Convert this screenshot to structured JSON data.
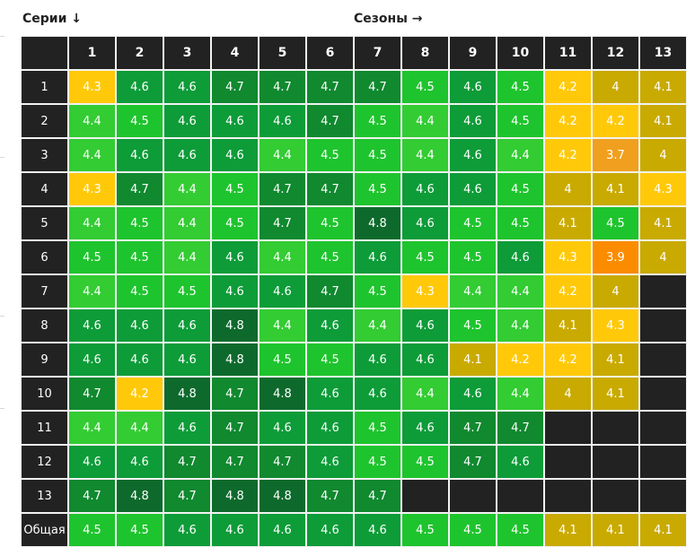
{
  "header": {
    "rows_label": "Серии ↓",
    "cols_label": "Сезоны →"
  },
  "chart_data": {
    "type": "heatmap",
    "title": "",
    "xlabel": "Сезоны →",
    "ylabel": "Серии ↓",
    "columns": [
      "1",
      "2",
      "3",
      "4",
      "5",
      "6",
      "7",
      "8",
      "9",
      "10",
      "11",
      "12",
      "13"
    ],
    "rows": [
      {
        "label": "1",
        "values": [
          4.3,
          4.6,
          4.6,
          4.7,
          4.7,
          4.7,
          4.7,
          4.5,
          4.6,
          4.5,
          4.2,
          4,
          4.1
        ]
      },
      {
        "label": "2",
        "values": [
          4.4,
          4.5,
          4.6,
          4.6,
          4.6,
          4.7,
          4.5,
          4.4,
          4.6,
          4.5,
          4.2,
          4.2,
          4.1
        ]
      },
      {
        "label": "3",
        "values": [
          4.4,
          4.6,
          4.6,
          4.6,
          4.4,
          4.5,
          4.5,
          4.4,
          4.6,
          4.4,
          4.2,
          3.7,
          4
        ]
      },
      {
        "label": "4",
        "values": [
          4.3,
          4.7,
          4.4,
          4.5,
          4.7,
          4.7,
          4.5,
          4.6,
          4.6,
          4.5,
          4,
          4.1,
          4.3
        ]
      },
      {
        "label": "5",
        "values": [
          4.4,
          4.5,
          4.4,
          4.5,
          4.7,
          4.5,
          4.8,
          4.6,
          4.5,
          4.5,
          4.1,
          4.5,
          4.1
        ]
      },
      {
        "label": "6",
        "values": [
          4.5,
          4.5,
          4.4,
          4.6,
          4.4,
          4.5,
          4.6,
          4.5,
          4.5,
          4.6,
          4.3,
          3.9,
          4
        ]
      },
      {
        "label": "7",
        "values": [
          4.4,
          4.5,
          4.5,
          4.6,
          4.6,
          4.7,
          4.5,
          4.3,
          4.4,
          4.4,
          4.2,
          4,
          null
        ]
      },
      {
        "label": "8",
        "values": [
          4.6,
          4.6,
          4.6,
          4.8,
          4.4,
          4.6,
          4.4,
          4.6,
          4.5,
          4.4,
          4.1,
          4.3,
          null
        ]
      },
      {
        "label": "9",
        "values": [
          4.6,
          4.6,
          4.6,
          4.8,
          4.5,
          4.5,
          4.6,
          4.6,
          4.1,
          4.2,
          4.2,
          4.1,
          null
        ]
      },
      {
        "label": "10",
        "values": [
          4.7,
          4.2,
          4.8,
          4.7,
          4.8,
          4.6,
          4.6,
          4.4,
          4.6,
          4.4,
          4,
          4.1,
          null
        ]
      },
      {
        "label": "11",
        "values": [
          4.4,
          4.4,
          4.6,
          4.7,
          4.6,
          4.6,
          4.5,
          4.6,
          4.7,
          4.7,
          null,
          null,
          null
        ]
      },
      {
        "label": "12",
        "values": [
          4.6,
          4.6,
          4.7,
          4.7,
          4.7,
          4.6,
          4.5,
          4.5,
          4.7,
          4.6,
          null,
          null,
          null
        ]
      },
      {
        "label": "13",
        "values": [
          4.7,
          4.8,
          4.7,
          4.8,
          4.8,
          4.7,
          4.7,
          null,
          null,
          null,
          null,
          null,
          null
        ]
      },
      {
        "label": "Общая",
        "values": [
          4.5,
          4.5,
          4.6,
          4.6,
          4.6,
          4.6,
          4.6,
          4.5,
          4.5,
          4.5,
          4.1,
          4.1,
          4.1
        ]
      }
    ],
    "legend": "none",
    "grid": true,
    "color_scale": {
      "3.7": "#f0a01e",
      "3.9": "#fb8c00",
      "4": "#c9aa00",
      "4.1": "#c9aa00",
      "4.2": "#ffc90a",
      "4.3": "#ffc90a",
      "4.4": "#33cc33",
      "4.5": "#1ec42d",
      "4.6": "#0d9c38",
      "4.7": "#10892f",
      "4.8": "#0d6a2c",
      "header": "#222222",
      "empty": "#222222",
      "grid_line": "#f2f2f2"
    }
  }
}
